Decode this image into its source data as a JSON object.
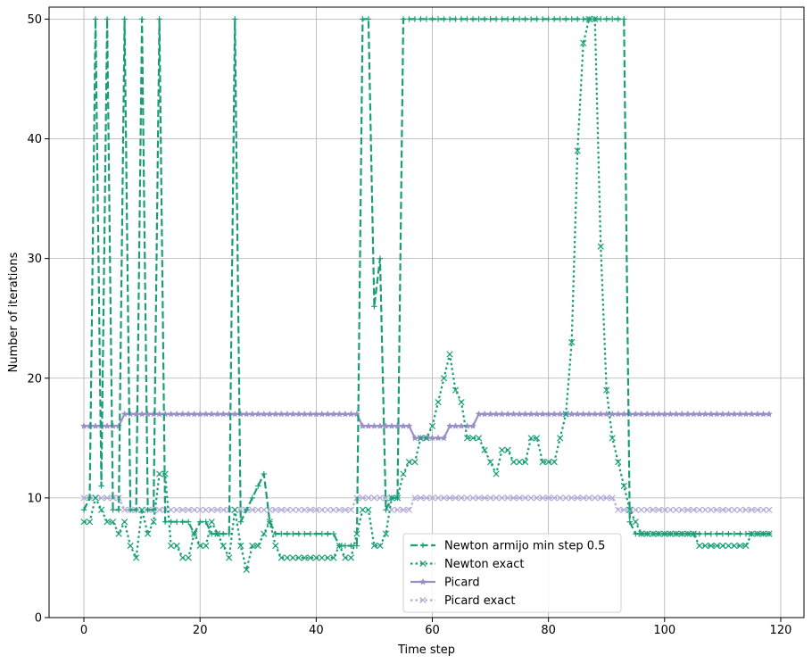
{
  "chart_data": {
    "type": "line",
    "title": "",
    "xlabel": "Time step",
    "ylabel": "Number of iterations",
    "xlim": [
      -6,
      124
    ],
    "ylim": [
      0,
      51
    ],
    "xticks": [
      0,
      20,
      40,
      60,
      80,
      100,
      120
    ],
    "yticks": [
      0,
      10,
      20,
      30,
      40,
      50
    ],
    "grid": true,
    "legend_position": "bottom-center",
    "series": [
      {
        "name": "Newton armijo min step 0.5",
        "color": "#1b9e77",
        "dash": "dashed",
        "marker": "plus",
        "values": [
          9,
          10,
          50,
          11,
          50,
          9,
          9,
          50,
          9,
          9,
          50,
          9,
          9,
          50,
          8,
          8,
          8,
          8,
          8,
          7,
          8,
          8,
          7,
          7,
          7,
          7,
          50,
          8,
          9,
          10,
          11,
          12,
          8,
          7,
          7,
          7,
          7,
          7,
          7,
          7,
          7,
          7,
          7,
          7,
          6,
          6,
          6,
          6,
          50,
          50,
          26,
          30,
          9,
          10,
          10,
          50,
          50,
          50,
          50,
          50,
          50,
          50,
          50,
          50,
          50,
          50,
          50,
          50,
          50,
          50,
          50,
          50,
          50,
          50,
          50,
          50,
          50,
          50,
          50,
          50,
          50,
          50,
          50,
          50,
          50,
          50,
          50,
          50,
          50,
          50,
          50,
          50,
          50,
          50,
          8,
          7,
          7,
          7,
          7,
          7,
          7,
          7,
          7,
          7,
          7,
          7,
          7,
          7,
          7,
          7,
          7,
          7,
          7,
          7,
          7,
          7,
          7,
          7,
          7
        ]
      },
      {
        "name": "Newton exact",
        "color": "#1b9e77",
        "dash": "dotted",
        "marker": "x",
        "values": [
          8,
          8,
          10,
          9,
          8,
          8,
          7,
          8,
          6,
          5,
          9,
          7,
          8,
          12,
          12,
          6,
          6,
          5,
          5,
          7,
          6,
          6,
          8,
          7,
          6,
          5,
          9,
          6,
          4,
          6,
          6,
          7,
          8,
          6,
          5,
          5,
          5,
          5,
          5,
          5,
          5,
          5,
          5,
          5,
          6,
          5,
          5,
          7,
          9,
          9,
          6,
          6,
          7,
          10,
          10,
          12,
          13,
          13,
          15,
          15,
          16,
          18,
          20,
          22,
          19,
          18,
          15,
          15,
          15,
          14,
          13,
          12,
          14,
          14,
          13,
          13,
          13,
          15,
          15,
          13,
          13,
          13,
          15,
          17,
          23,
          39,
          48,
          50,
          50,
          31,
          19,
          15,
          13,
          11,
          9,
          8,
          7,
          7,
          7,
          7,
          7,
          7,
          7,
          7,
          7,
          7,
          6,
          6,
          6,
          6,
          6,
          6,
          6,
          6,
          6,
          7,
          7,
          7,
          7
        ]
      },
      {
        "name": "Picard",
        "color": "#9a90c7",
        "dash": "solid",
        "marker": "star",
        "values": [
          16,
          16,
          16,
          16,
          16,
          16,
          16,
          17,
          17,
          17,
          17,
          17,
          17,
          17,
          17,
          17,
          17,
          17,
          17,
          17,
          17,
          17,
          17,
          17,
          17,
          17,
          17,
          17,
          17,
          17,
          17,
          17,
          17,
          17,
          17,
          17,
          17,
          17,
          17,
          17,
          17,
          17,
          17,
          17,
          17,
          17,
          17,
          17,
          16,
          16,
          16,
          16,
          16,
          16,
          16,
          16,
          16,
          15,
          15,
          15,
          15,
          15,
          15,
          16,
          16,
          16,
          16,
          16,
          17,
          17,
          17,
          17,
          17,
          17,
          17,
          17,
          17,
          17,
          17,
          17,
          17,
          17,
          17,
          17,
          17,
          17,
          17,
          17,
          17,
          17,
          17,
          17,
          17,
          17,
          17,
          17,
          17,
          17,
          17,
          17,
          17,
          17,
          17,
          17,
          17,
          17,
          17,
          17,
          17,
          17,
          17,
          17,
          17,
          17,
          17,
          17,
          17,
          17,
          17
        ]
      },
      {
        "name": "Picard exact",
        "color": "#b4abd6",
        "dash": "dotted",
        "marker": "x",
        "values": [
          10,
          10,
          10,
          10,
          10,
          10,
          10,
          9,
          9,
          9,
          9,
          9,
          9,
          9,
          9,
          9,
          9,
          9,
          9,
          9,
          9,
          9,
          9,
          9,
          9,
          9,
          9,
          9,
          9,
          9,
          9,
          9,
          9,
          9,
          9,
          9,
          9,
          9,
          9,
          9,
          9,
          9,
          9,
          9,
          9,
          9,
          9,
          10,
          10,
          10,
          10,
          10,
          10,
          9,
          9,
          9,
          9,
          10,
          10,
          10,
          10,
          10,
          10,
          10,
          10,
          10,
          10,
          10,
          10,
          10,
          10,
          10,
          10,
          10,
          10,
          10,
          10,
          10,
          10,
          10,
          10,
          10,
          10,
          10,
          10,
          10,
          10,
          10,
          10,
          10,
          10,
          10,
          9,
          9,
          9,
          9,
          9,
          9,
          9,
          9,
          9,
          9,
          9,
          9,
          9,
          9,
          9,
          9,
          9,
          9,
          9,
          9,
          9,
          9,
          9,
          9,
          9,
          9,
          9
        ]
      }
    ]
  }
}
